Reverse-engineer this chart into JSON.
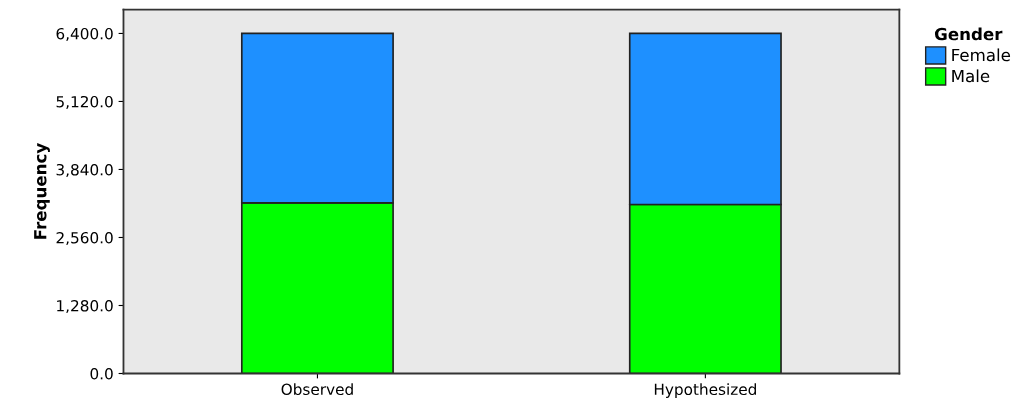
{
  "chart_data": {
    "type": "bar",
    "stacked": true,
    "ylabel": "Frequency",
    "legend_title": "Gender",
    "legend": "right",
    "categories": [
      "Observed",
      "Hypothesized"
    ],
    "series": [
      {
        "name": "Male",
        "color": "#00ff00",
        "values": [
          3210,
          3180
        ]
      },
      {
        "name": "Female",
        "color": "#1e90ff",
        "values": [
          3190,
          3220
        ]
      }
    ],
    "ylim": [
      0,
      6850
    ],
    "yticks": [
      {
        "value": 0,
        "label": "0.0"
      },
      {
        "value": 1280,
        "label": "1,280.0"
      },
      {
        "value": 2560,
        "label": "2,560.0"
      },
      {
        "value": 3840,
        "label": "3,840.0"
      },
      {
        "value": 5120,
        "label": "5,120.0"
      },
      {
        "value": 6400,
        "label": "6,400.0"
      }
    ],
    "grid": false
  }
}
